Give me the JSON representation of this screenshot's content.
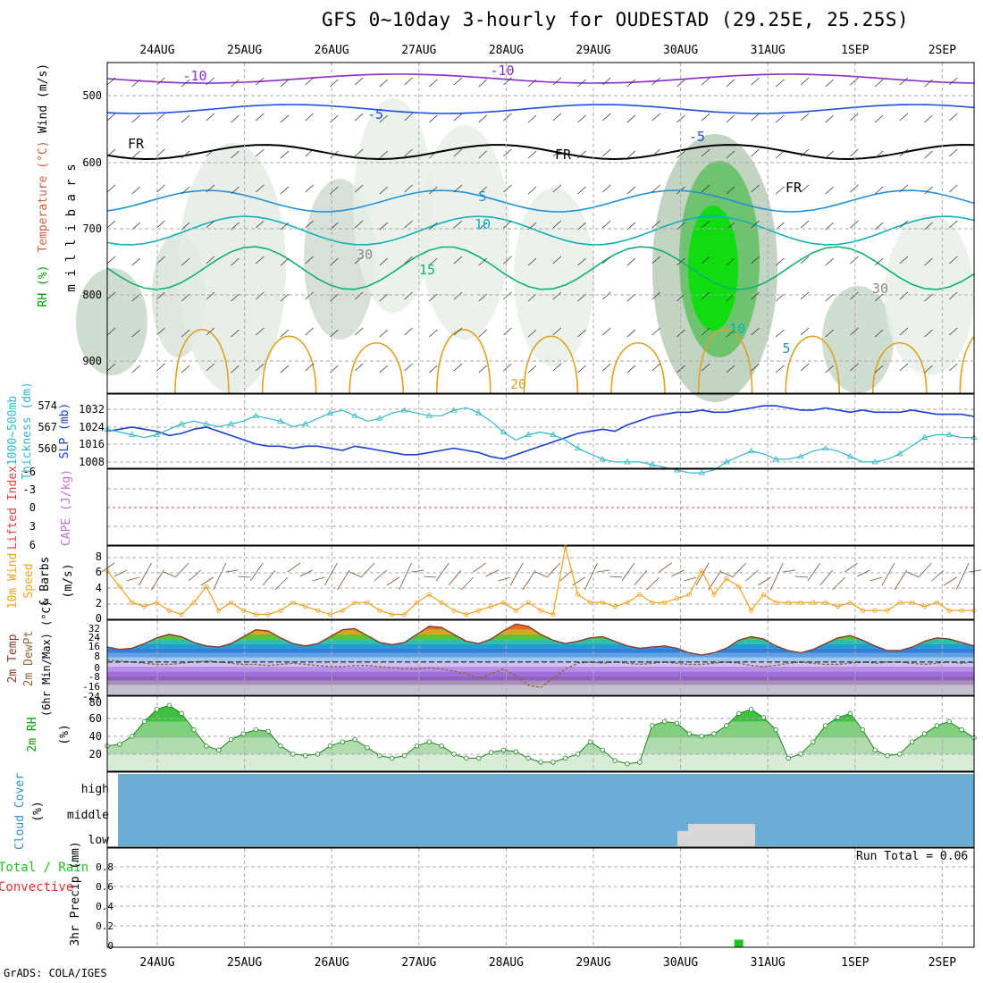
{
  "title": "GFS 0~10day 3-hourly for OUDESTAD (29.25E, 25.25S)",
  "credit": "GrADS: COLA/IGES",
  "run_total_label": "Run Total = 0.06",
  "dates": [
    "24AUG",
    "25AUG",
    "26AUG",
    "27AUG",
    "28AUG",
    "29AUG",
    "30AUG",
    "31AUG",
    "1SEP",
    "2SEP"
  ],
  "chart_data": [
    {
      "type": "contour",
      "panel": "upper-air",
      "ylabel": "m i l l i b a r s",
      "left_labels": [
        "RH (%)",
        "Temperature (°C)",
        "Wind (m/s)"
      ],
      "y_ticks": [
        500,
        600,
        700,
        800,
        900
      ],
      "contour_labels": [
        "-10",
        "-10",
        "-5",
        "-5",
        "5",
        "5",
        "10",
        "10",
        "15",
        "20",
        "30",
        "30",
        "FR",
        "FR",
        "FR"
      ],
      "colors": {
        "minus10": "#8a2cc8",
        "minus5": "#1f4fd8",
        "five": "#2090d8",
        "ten": "#10b0b8",
        "fifteen": "#10b070",
        "twenty": "#e0a020",
        "freezing": "#000000",
        "rh_high": "#00d000"
      }
    },
    {
      "type": "line",
      "panel": "thickness-slp",
      "left_labels": [
        "1000~500mb",
        "Thickness (dm)",
        "SLP (mb)"
      ],
      "y_ticks_left": [
        "574",
        "567",
        "560"
      ],
      "y_ticks_right": [
        "1032",
        "1024",
        "1016",
        "1008"
      ],
      "series": [
        {
          "color": "#1a3fd0",
          "values": [
            1021,
            1022,
            1023,
            1022,
            1021,
            1019,
            1020,
            1022,
            1023,
            1021,
            1019,
            1017,
            1015,
            1014,
            1014,
            1013,
            1014,
            1014,
            1013,
            1012,
            1014,
            1013,
            1012,
            1011,
            1010,
            1010,
            1011,
            1012,
            1013,
            1012,
            1011,
            1009,
            1008,
            1010,
            1012,
            1014,
            1016,
            1018,
            1020,
            1021,
            1022,
            1021,
            1024,
            1026,
            1028,
            1029,
            1030,
            1030,
            1031,
            1030,
            1030,
            1031,
            1032,
            1033,
            1033,
            1032,
            1031,
            1031,
            1032,
            1031,
            1030,
            1031,
            1030,
            1030,
            1030,
            1031,
            1030,
            1029,
            1029,
            1029,
            1028
          ]
        },
        {
          "color": "#30b8c8",
          "marker": "triangle",
          "values": [
            567,
            566,
            565,
            564,
            565,
            567,
            569,
            570,
            569,
            568,
            569,
            570,
            572,
            571,
            570,
            568,
            569,
            571,
            573,
            574,
            572,
            570,
            571,
            573,
            574,
            573,
            572,
            572,
            574,
            575,
            573,
            570,
            566,
            563,
            565,
            566,
            565,
            563,
            560,
            558,
            556,
            555,
            555,
            555,
            554,
            553,
            552,
            551,
            551,
            552,
            555,
            557,
            559,
            558,
            556,
            556,
            557,
            559,
            560,
            559,
            557,
            555,
            555,
            556,
            558,
            561,
            564,
            565,
            565,
            564,
            564
          ]
        }
      ]
    },
    {
      "type": "line",
      "panel": "instability",
      "left_labels": [
        "Lifted Index",
        "CAPE (J/kg)"
      ],
      "y_ticks": [
        "-6",
        "-3",
        "0",
        "3",
        "6"
      ],
      "lifted_index_zero": 0
    },
    {
      "type": "line",
      "panel": "wind10m",
      "left_labels": [
        "10m Wind",
        "Speed",
        "& Barbs",
        "(m/s)"
      ],
      "y_ticks": [
        "8",
        "6",
        "4",
        "2",
        "0"
      ],
      "ylim": [
        0,
        9
      ],
      "series": [
        {
          "color": "#f0a020",
          "values": [
            6,
            4,
            2,
            1.5,
            2,
            1,
            0.5,
            2,
            4,
            1,
            2,
            1,
            0.5,
            0.5,
            1,
            2,
            1.5,
            1,
            0.5,
            1,
            2,
            2,
            1,
            0.5,
            0.5,
            2,
            3,
            2,
            1,
            0.5,
            1,
            1.5,
            2,
            1,
            2,
            1,
            0.5,
            9,
            3,
            2,
            2,
            1.5,
            2,
            3,
            2,
            2,
            2.5,
            3,
            6,
            3,
            5,
            4,
            1,
            3,
            2,
            2,
            2,
            2,
            2,
            1.5,
            2,
            1,
            1,
            1,
            2,
            2,
            1.5,
            2,
            1,
            1,
            1
          ]
        }
      ]
    },
    {
      "type": "area",
      "panel": "temperature",
      "left_labels": [
        "2m Temp",
        "2m DewPt",
        "(6hr Min/Max) (°C)"
      ],
      "y_ticks": [
        "32",
        "24",
        "16",
        "8",
        "0",
        "-8",
        "-16",
        "-24"
      ],
      "ylim": [
        -28,
        34
      ],
      "series": [
        {
          "name": "",
          "values": [
            13,
            11,
            12,
            16,
            21,
            24,
            22,
            17,
            14,
            13,
            16,
            22,
            28,
            27,
            21,
            16,
            14,
            16,
            22,
            28,
            29,
            23,
            17,
            15,
            17,
            24,
            31,
            30,
            24,
            18,
            16,
            20,
            27,
            33,
            31,
            24,
            19,
            16,
            18,
            21,
            22,
            18,
            14,
            12,
            13,
            14,
            12,
            8,
            6,
            8,
            12,
            19,
            22,
            20,
            14,
            10,
            8,
            11,
            16,
            21,
            23,
            19,
            14,
            10,
            10,
            13,
            18,
            21,
            20,
            17,
            14
          ]
        },
        {
          "name": "",
          "values": [
            2,
            1,
            0,
            -1,
            -2,
            -2,
            -1,
            0,
            1,
            0,
            -1,
            -2,
            -2,
            -3,
            -2,
            -1,
            -2,
            -3,
            -4,
            -4,
            -3,
            -3,
            -4,
            -5,
            -6,
            -6,
            -5,
            -6,
            -8,
            -10,
            -14,
            -10,
            -6,
            -12,
            -20,
            -22,
            -14,
            -6,
            -1,
            0,
            -1,
            0,
            -1,
            -2,
            -1,
            0,
            -1,
            -2,
            -2,
            -1,
            0,
            -1,
            -3,
            -4,
            -3,
            -1,
            0,
            -1,
            -2,
            -2,
            -1,
            0,
            -1,
            0,
            0,
            -1,
            -2,
            -1,
            0,
            -1,
            0
          ]
        }
      ]
    },
    {
      "type": "area",
      "panel": "rh2m",
      "left_labels": [
        "2m RH",
        "(%)"
      ],
      "y_ticks": [
        "80",
        "60",
        "40",
        "20"
      ],
      "ylim": [
        0,
        88
      ],
      "series": [
        {
          "color": "#00c000",
          "values": [
            30,
            32,
            42,
            60,
            75,
            80,
            70,
            50,
            30,
            25,
            38,
            45,
            50,
            48,
            30,
            20,
            18,
            20,
            30,
            35,
            38,
            28,
            18,
            15,
            18,
            30,
            35,
            30,
            20,
            15,
            15,
            22,
            25,
            23,
            15,
            10,
            10,
            15,
            20,
            35,
            25,
            12,
            8,
            10,
            55,
            60,
            58,
            45,
            42,
            45,
            55,
            70,
            75,
            65,
            50,
            15,
            20,
            35,
            55,
            65,
            70,
            50,
            25,
            18,
            20,
            35,
            45,
            55,
            60,
            50,
            40
          ]
        }
      ]
    },
    {
      "type": "area",
      "panel": "cloud",
      "left_labels": [
        "Cloud Cover",
        "(%)"
      ],
      "y_ticks": [
        "high",
        "middle",
        "low"
      ]
    },
    {
      "type": "bar",
      "panel": "precip",
      "left_labels": [
        "Total / Rain",
        "Convective",
        "3hr Precip (mm)"
      ],
      "y_ticks": [
        "0.8",
        "0.6",
        "0.4",
        "0.2",
        "0"
      ],
      "ylim": [
        0,
        1
      ],
      "series": [
        {
          "name": "",
          "color": "#20c020",
          "values": [
            {
              "x": 51,
              "v": 0.06
            }
          ]
        }
      ]
    }
  ]
}
